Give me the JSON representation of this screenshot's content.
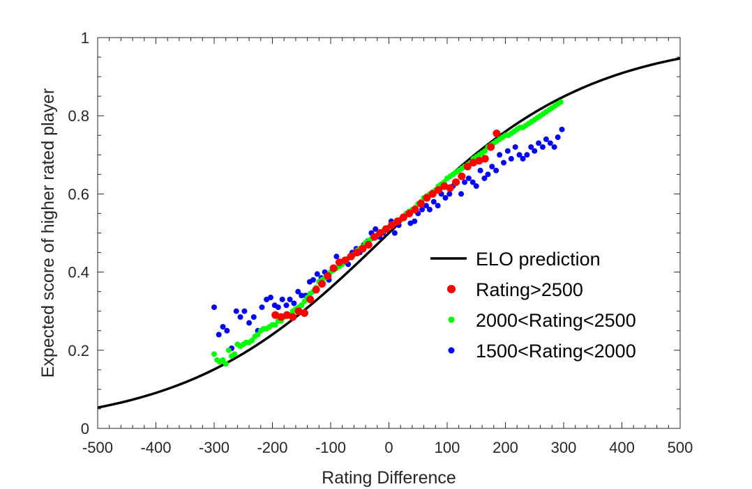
{
  "chart_data": {
    "type": "scatter",
    "title": "",
    "xlabel": "Rating Difference",
    "ylabel": "Expected score of higher rated player",
    "xlim": [
      -500,
      500
    ],
    "ylim": [
      0,
      1
    ],
    "x_ticks": [
      -500,
      -400,
      -300,
      -200,
      -100,
      0,
      100,
      200,
      300,
      400,
      500
    ],
    "y_ticks": [
      0,
      0.2,
      0.4,
      0.6,
      0.8,
      1
    ],
    "x_tick_labels": [
      "-500",
      "-400",
      "-300",
      "-200",
      "-100",
      "0",
      "100",
      "200",
      "300",
      "400",
      "500"
    ],
    "y_tick_labels": [
      "0",
      "0.2",
      "0.4",
      "0.6",
      "0.8",
      "1"
    ],
    "grid": false,
    "legend_position": "center-right",
    "elo_curve": {
      "name": "ELO prediction",
      "color": "#000000",
      "formula": "1/(1+10^(-x/400))",
      "x_start": -500,
      "x_end": 500,
      "x_step": 10
    },
    "series": [
      {
        "name": "Rating>2500",
        "color": "#ff0000",
        "marker_size": "large",
        "x": [
          -195,
          -185,
          -175,
          -165,
          -155,
          -145,
          -135,
          -125,
          -115,
          -105,
          -95,
          -85,
          -75,
          -65,
          -55,
          -45,
          -35,
          -25,
          -15,
          -5,
          5,
          15,
          25,
          35,
          45,
          55,
          65,
          75,
          85,
          95,
          105,
          115,
          125,
          135,
          145,
          155,
          165,
          175,
          185
        ],
        "y": [
          0.29,
          0.285,
          0.29,
          0.285,
          0.3,
          0.295,
          0.33,
          0.355,
          0.37,
          0.39,
          0.41,
          0.425,
          0.43,
          0.44,
          0.45,
          0.46,
          0.47,
          0.49,
          0.5,
          0.51,
          0.52,
          0.53,
          0.54,
          0.55,
          0.56,
          0.575,
          0.59,
          0.6,
          0.61,
          0.62,
          0.615,
          0.63,
          0.645,
          0.67,
          0.68,
          0.685,
          0.69,
          0.72,
          0.755
        ]
      },
      {
        "name": "2000<Rating<2500",
        "color": "#00ff00",
        "marker_size": "small",
        "x": [
          -300,
          -295,
          -290,
          -285,
          -280,
          -275,
          -270,
          -265,
          -260,
          -255,
          -250,
          -245,
          -240,
          -235,
          -230,
          -225,
          -220,
          -215,
          -210,
          -205,
          -200,
          -195,
          -190,
          -185,
          -180,
          -175,
          -170,
          -165,
          -160,
          -155,
          -150,
          -145,
          -140,
          -135,
          -130,
          -125,
          -120,
          -115,
          -110,
          -105,
          -100,
          -95,
          -90,
          -85,
          -80,
          -75,
          -70,
          -65,
          -60,
          -55,
          -50,
          -45,
          -40,
          -35,
          -30,
          -25,
          -20,
          -15,
          -10,
          -5,
          0,
          5,
          10,
          15,
          20,
          25,
          30,
          35,
          40,
          45,
          50,
          55,
          60,
          65,
          70,
          75,
          80,
          85,
          90,
          95,
          100,
          105,
          110,
          115,
          120,
          125,
          130,
          135,
          140,
          145,
          150,
          155,
          160,
          165,
          170,
          175,
          180,
          185,
          190,
          195,
          200,
          205,
          210,
          215,
          220,
          225,
          230,
          235,
          240,
          245,
          250,
          255,
          260,
          265,
          270,
          275,
          280,
          285,
          290,
          295
        ],
        "y": [
          0.19,
          0.175,
          0.17,
          0.175,
          0.165,
          0.2,
          0.185,
          0.19,
          0.215,
          0.21,
          0.215,
          0.22,
          0.22,
          0.225,
          0.235,
          0.24,
          0.25,
          0.255,
          0.255,
          0.26,
          0.265,
          0.265,
          0.275,
          0.275,
          0.285,
          0.29,
          0.29,
          0.3,
          0.305,
          0.31,
          0.315,
          0.325,
          0.335,
          0.345,
          0.35,
          0.36,
          0.375,
          0.38,
          0.385,
          0.39,
          0.4,
          0.405,
          0.41,
          0.415,
          0.42,
          0.43,
          0.435,
          0.44,
          0.445,
          0.455,
          0.46,
          0.465,
          0.475,
          0.48,
          0.485,
          0.49,
          0.495,
          0.5,
          0.505,
          0.51,
          0.515,
          0.52,
          0.525,
          0.53,
          0.535,
          0.54,
          0.55,
          0.555,
          0.56,
          0.565,
          0.575,
          0.58,
          0.59,
          0.595,
          0.6,
          0.605,
          0.61,
          0.62,
          0.625,
          0.63,
          0.64,
          0.645,
          0.65,
          0.655,
          0.66,
          0.665,
          0.67,
          0.675,
          0.68,
          0.69,
          0.695,
          0.7,
          0.705,
          0.71,
          0.72,
          0.725,
          0.73,
          0.735,
          0.74,
          0.745,
          0.75,
          0.75,
          0.755,
          0.76,
          0.765,
          0.77,
          0.77,
          0.775,
          0.78,
          0.785,
          0.79,
          0.795,
          0.8,
          0.805,
          0.81,
          0.815,
          0.82,
          0.825,
          0.83,
          0.835
        ]
      },
      {
        "name": "1500<Rating<2000",
        "color": "#0000ff",
        "marker_size": "small",
        "x": [
          -300,
          -292,
          -285,
          -278,
          -270,
          -262,
          -255,
          -248,
          -240,
          -232,
          -225,
          -218,
          -210,
          -203,
          -196,
          -190,
          -183,
          -176,
          -170,
          -163,
          -156,
          -150,
          -143,
          -136,
          -130,
          -123,
          -116,
          -110,
          -103,
          -96,
          -90,
          -83,
          -76,
          -70,
          -63,
          -56,
          -50,
          -43,
          -36,
          -30,
          -23,
          -16,
          -10,
          -3,
          4,
          10,
          17,
          24,
          30,
          37,
          44,
          50,
          57,
          64,
          70,
          77,
          84,
          90,
          97,
          104,
          110,
          117,
          124,
          130,
          137,
          144,
          150,
          157,
          164,
          170,
          177,
          184,
          190,
          197,
          204,
          210,
          217,
          224,
          230,
          237,
          244,
          250,
          257,
          264,
          270,
          277,
          284,
          290,
          297
        ],
        "y": [
          0.31,
          0.24,
          0.26,
          0.25,
          0.205,
          0.3,
          0.285,
          0.3,
          0.27,
          0.285,
          0.25,
          0.31,
          0.33,
          0.335,
          0.315,
          0.31,
          0.33,
          0.315,
          0.33,
          0.32,
          0.35,
          0.34,
          0.34,
          0.375,
          0.38,
          0.395,
          0.385,
          0.4,
          0.38,
          0.41,
          0.44,
          0.42,
          0.43,
          0.42,
          0.45,
          0.46,
          0.45,
          0.47,
          0.48,
          0.5,
          0.51,
          0.49,
          0.5,
          0.51,
          0.53,
          0.5,
          0.52,
          0.54,
          0.55,
          0.525,
          0.53,
          0.55,
          0.56,
          0.57,
          0.56,
          0.58,
          0.57,
          0.6,
          0.59,
          0.6,
          0.62,
          0.63,
          0.6,
          0.63,
          0.64,
          0.63,
          0.62,
          0.66,
          0.64,
          0.65,
          0.67,
          0.66,
          0.7,
          0.68,
          0.71,
          0.69,
          0.72,
          0.7,
          0.69,
          0.7,
          0.72,
          0.71,
          0.73,
          0.72,
          0.74,
          0.73,
          0.72,
          0.745,
          0.765
        ]
      }
    ]
  }
}
